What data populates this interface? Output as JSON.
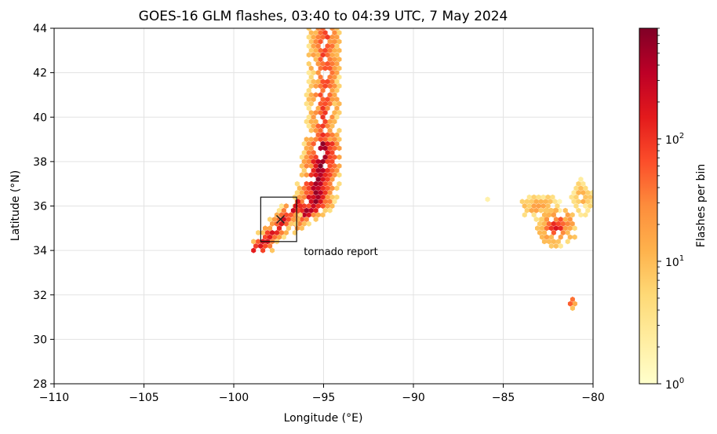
{
  "chart_data": {
    "type": "heatmap",
    "subtype": "hexbin",
    "title": "GOES-16 GLM flashes, 03:40 to 04:39 UTC, 7 May 2024",
    "xlabel": "Longitude (°E)",
    "ylabel": "Latitude (°N)",
    "xlim": [
      -110,
      -80
    ],
    "ylim": [
      28,
      44
    ],
    "xticks": [
      -110,
      -105,
      -100,
      -95,
      -90,
      -85,
      -80
    ],
    "xtick_labels": [
      "−110",
      "−105",
      "−100",
      "−95",
      "−90",
      "−85",
      "−80"
    ],
    "yticks": [
      28,
      30,
      32,
      34,
      36,
      38,
      40,
      42,
      44
    ],
    "ytick_labels": [
      "28",
      "30",
      "32",
      "34",
      "36",
      "38",
      "40",
      "42",
      "44"
    ],
    "grid": true,
    "colorbar": {
      "label": "Flashes per bin",
      "scale": "log",
      "range": [
        1,
        800
      ],
      "ticks": [
        {
          "value": 1,
          "base": "10",
          "exp": "0"
        },
        {
          "value": 10,
          "base": "10",
          "exp": "1"
        },
        {
          "value": 100,
          "base": "10",
          "exp": "2"
        }
      ],
      "colormap": [
        "#ffffcc",
        "#ffeda0",
        "#fed976",
        "#feb24c",
        "#fd8d3c",
        "#fc4e2a",
        "#e31a1c",
        "#bd0026",
        "#800026"
      ]
    },
    "annotations": [
      {
        "type": "box",
        "lon": [
          -98.5,
          -96.5
        ],
        "lat": [
          34.4,
          36.4
        ]
      },
      {
        "type": "marker",
        "symbol": "x",
        "lon": -97.4,
        "lat": 35.4
      },
      {
        "type": "text",
        "text": "tornado report",
        "lon": -96.1,
        "lat": 33.8
      }
    ],
    "hexbin": {
      "lon_step": 0.26,
      "lat_step": 0.2,
      "clusters": [
        {
          "lon_range": [
            -96.6,
            -94.1
          ],
          "lat_range": [
            34.8,
            44.0
          ],
          "peak": 650
        },
        {
          "lon_range": [
            -98.9,
            -96.2
          ],
          "lat_range": [
            34.0,
            36.2
          ],
          "peak": 420
        },
        {
          "lon_range": [
            -84.2,
            -81.7
          ],
          "lat_range": [
            35.4,
            36.5
          ],
          "peak": 30
        },
        {
          "lon_range": [
            -83.1,
            -80.9
          ],
          "lat_range": [
            34.2,
            35.9
          ],
          "peak": 180
        },
        {
          "lon_range": [
            -81.2,
            -80.0
          ],
          "lat_range": [
            35.6,
            37.2
          ],
          "peak": 20
        },
        {
          "lon_range": [
            -81.4,
            -80.9
          ],
          "lat_range": [
            31.4,
            31.9
          ],
          "peak": 210
        },
        {
          "lon_range": [
            -86.0,
            -85.8
          ],
          "lat_range": [
            36.1,
            36.4
          ],
          "peak": 2
        }
      ]
    }
  }
}
